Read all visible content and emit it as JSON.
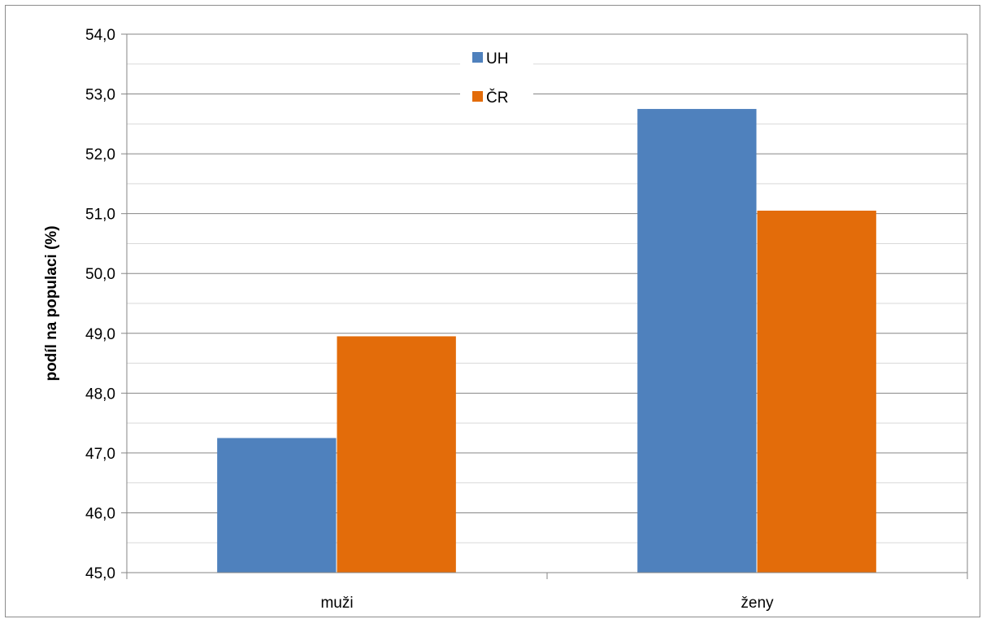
{
  "chart_data": {
    "type": "bar",
    "categories": [
      "muži",
      "ženy"
    ],
    "series": [
      {
        "name": "UH",
        "color": "#4F81BD",
        "values": [
          47.25,
          52.75
        ]
      },
      {
        "name": "ČR",
        "color": "#E36C0A",
        "values": [
          48.95,
          51.05
        ]
      }
    ],
    "ylim": [
      45,
      54
    ],
    "y_major_step": 1,
    "y_minor_step": 0.5,
    "yticks": [
      "45,0",
      "46,0",
      "47,0",
      "48,0",
      "49,0",
      "50,0",
      "51,0",
      "52,0",
      "53,0",
      "54,0"
    ],
    "ylabel": "podíl na populaci (%)",
    "xlabel": "",
    "title": "",
    "grid": true,
    "legend_position": "top-center"
  }
}
